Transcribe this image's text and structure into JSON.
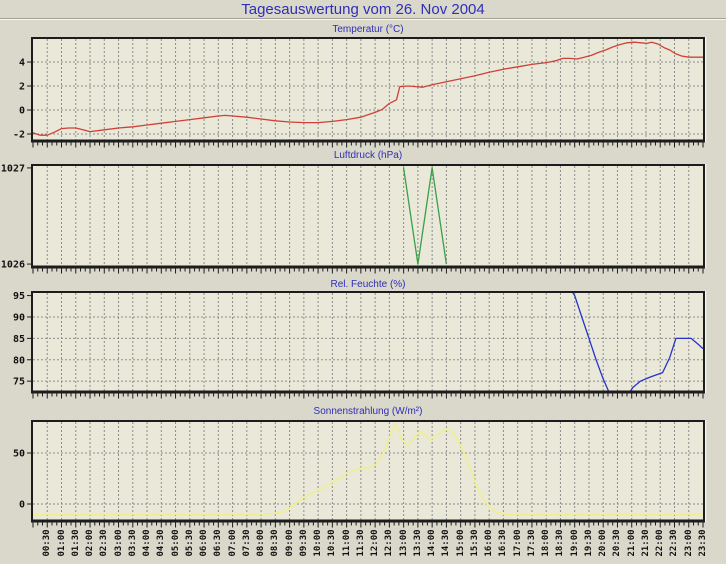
{
  "page": {
    "title": "Tagesauswertung vom 26. Nov 2004"
  },
  "colors": {
    "page_bg": "#d9d8ca",
    "plot_bg": "#e9e8d9",
    "grid": "#8c8c8c",
    "axis": "#1c1c1c",
    "highlight": "#f7f7ee",
    "title_blue": "#2e2eb8",
    "temperature_line": "#d04038",
    "pressure_line": "#3aa048",
    "humidity_line": "#2832c8",
    "solar_line": "#efef92"
  },
  "axis": {
    "x_range": [
      "00:00",
      "23:30"
    ],
    "x_tick_interval_min": 30,
    "x_tick_labels": [
      "00:30",
      "01:00",
      "01:30",
      "02:00",
      "02:30",
      "03:00",
      "03:30",
      "04:00",
      "04:30",
      "05:00",
      "05:30",
      "06:00",
      "06:30",
      "07:00",
      "07:30",
      "08:00",
      "08:30",
      "09:00",
      "09:30",
      "10:00",
      "10:30",
      "11:00",
      "11:30",
      "12:00",
      "12:30",
      "13:00",
      "13:30",
      "14:00",
      "14:30",
      "15:00",
      "15:30",
      "16:00",
      "16:30",
      "17:00",
      "17:30",
      "18:00",
      "18:30",
      "19:00",
      "19:30",
      "20:00",
      "20:30",
      "21:00",
      "21:30",
      "22:00",
      "22:30",
      "23:00",
      "23:30"
    ]
  },
  "chart_data": [
    {
      "type": "line",
      "name": "temperature",
      "title": "Temperatur (°C)",
      "color": "#d04038",
      "stroke_width": 1.3,
      "grid": true,
      "legend": "none",
      "ylim": [
        -2.5,
        5.92
      ],
      "yticks": [
        {
          "value": 4,
          "label": "4"
        },
        {
          "value": 2,
          "label": "2"
        },
        {
          "value": 0,
          "label": "0"
        },
        {
          "value": -2,
          "label": "-2"
        }
      ],
      "x_unit": "minutes_from_midnight",
      "series": [
        [
          0,
          -1.9
        ],
        [
          15,
          -2.1
        ],
        [
          30,
          -2.1
        ],
        [
          45,
          -1.85
        ],
        [
          60,
          -1.55
        ],
        [
          75,
          -1.5
        ],
        [
          90,
          -1.5
        ],
        [
          105,
          -1.65
        ],
        [
          120,
          -1.8
        ],
        [
          150,
          -1.65
        ],
        [
          180,
          -1.5
        ],
        [
          210,
          -1.4
        ],
        [
          240,
          -1.25
        ],
        [
          270,
          -1.1
        ],
        [
          300,
          -0.95
        ],
        [
          330,
          -0.8
        ],
        [
          360,
          -0.65
        ],
        [
          390,
          -0.5
        ],
        [
          405,
          -0.45
        ],
        [
          420,
          -0.5
        ],
        [
          450,
          -0.6
        ],
        [
          480,
          -0.75
        ],
        [
          510,
          -0.9
        ],
        [
          540,
          -1.0
        ],
        [
          570,
          -1.05
        ],
        [
          600,
          -1.05
        ],
        [
          630,
          -0.95
        ],
        [
          660,
          -0.8
        ],
        [
          690,
          -0.6
        ],
        [
          705,
          -0.4
        ],
        [
          720,
          -0.2
        ],
        [
          735,
          0.05
        ],
        [
          750,
          0.55
        ],
        [
          765,
          0.85
        ],
        [
          772,
          1.95
        ],
        [
          790,
          2.0
        ],
        [
          805,
          1.95
        ],
        [
          820,
          1.9
        ],
        [
          840,
          2.1
        ],
        [
          870,
          2.35
        ],
        [
          900,
          2.6
        ],
        [
          930,
          2.85
        ],
        [
          960,
          3.15
        ],
        [
          990,
          3.4
        ],
        [
          1020,
          3.6
        ],
        [
          1050,
          3.8
        ],
        [
          1080,
          3.95
        ],
        [
          1100,
          4.1
        ],
        [
          1115,
          4.3
        ],
        [
          1130,
          4.3
        ],
        [
          1145,
          4.25
        ],
        [
          1160,
          4.4
        ],
        [
          1175,
          4.55
        ],
        [
          1190,
          4.8
        ],
        [
          1205,
          5.0
        ],
        [
          1220,
          5.25
        ],
        [
          1235,
          5.45
        ],
        [
          1250,
          5.6
        ],
        [
          1265,
          5.65
        ],
        [
          1280,
          5.6
        ],
        [
          1292,
          5.55
        ],
        [
          1302,
          5.65
        ],
        [
          1315,
          5.5
        ],
        [
          1328,
          5.2
        ],
        [
          1340,
          5.0
        ],
        [
          1352,
          4.7
        ],
        [
          1365,
          4.5
        ],
        [
          1380,
          4.4
        ],
        [
          1410,
          4.4
        ]
      ]
    },
    {
      "type": "line",
      "name": "pressure",
      "title": "Luftdruck (hPa)",
      "color": "#3aa048",
      "stroke_width": 1.3,
      "grid": true,
      "legend": "none",
      "ylim": [
        1025.98,
        1027.02
      ],
      "yticks": [
        {
          "value": 1027,
          "label": "1027"
        },
        {
          "value": 1026,
          "label": "1026"
        }
      ],
      "x_unit": "minutes_from_midnight",
      "series": [
        [
          780,
          1027
        ],
        [
          810,
          1026
        ],
        [
          840,
          1027
        ],
        [
          870,
          1026
        ]
      ]
    },
    {
      "type": "line",
      "name": "humidity",
      "title": "Rel. Feuchte (%)",
      "color": "#2832c8",
      "stroke_width": 1.3,
      "grid": true,
      "legend": "none",
      "ylim": [
        72.7,
        95.6
      ],
      "yticks": [
        {
          "value": 95,
          "label": "95"
        },
        {
          "value": 90,
          "label": "90"
        },
        {
          "value": 85,
          "label": "85"
        },
        {
          "value": 80,
          "label": "80"
        },
        {
          "value": 75,
          "label": "75"
        }
      ],
      "x_unit": "minutes_from_midnight",
      "series": [
        [
          1128,
          97
        ],
        [
          1140,
          95
        ],
        [
          1155,
          90
        ],
        [
          1170,
          85
        ],
        [
          1185,
          80
        ],
        [
          1200,
          75.5
        ],
        [
          1212,
          72.5
        ],
        [
          1222,
          71.5
        ],
        [
          1240,
          71.2
        ],
        [
          1252,
          71.8
        ],
        [
          1262,
          73.5
        ],
        [
          1278,
          75
        ],
        [
          1300,
          76
        ],
        [
          1325,
          77
        ],
        [
          1340,
          80.5
        ],
        [
          1353,
          85
        ],
        [
          1370,
          85
        ],
        [
          1385,
          85
        ],
        [
          1398,
          83.8
        ],
        [
          1410,
          82.6
        ]
      ]
    },
    {
      "type": "line",
      "name": "solar-radiation",
      "title": "Sonnenstrahlung (W/m²)",
      "color": "#efef92",
      "stroke_width": 1.6,
      "grid": true,
      "legend": "none",
      "ylim": [
        -15.7,
        80.4
      ],
      "yticks": [
        {
          "value": 50,
          "label": "50"
        },
        {
          "value": 0,
          "label": "0"
        }
      ],
      "x_unit": "minutes_from_midnight",
      "series": [
        [
          0,
          -10
        ],
        [
          45,
          -10.4
        ],
        [
          90,
          -10
        ],
        [
          135,
          -10.3
        ],
        [
          180,
          -10
        ],
        [
          240,
          -10.2
        ],
        [
          300,
          -10
        ],
        [
          360,
          -10.2
        ],
        [
          420,
          -10
        ],
        [
          465,
          -10
        ],
        [
          495,
          -9.6
        ],
        [
          510,
          -9
        ],
        [
          525,
          -8
        ],
        [
          540,
          -4
        ],
        [
          550,
          0
        ],
        [
          565,
          5
        ],
        [
          580,
          9
        ],
        [
          600,
          13
        ],
        [
          615,
          17
        ],
        [
          630,
          21
        ],
        [
          645,
          25
        ],
        [
          660,
          30
        ],
        [
          675,
          33
        ],
        [
          690,
          35
        ],
        [
          708,
          36
        ],
        [
          722,
          39
        ],
        [
          733,
          46
        ],
        [
          744,
          58
        ],
        [
          755,
          71
        ],
        [
          760,
          79
        ],
        [
          768,
          74
        ],
        [
          775,
          64
        ],
        [
          788,
          57
        ],
        [
          800,
          63
        ],
        [
          815,
          72
        ],
        [
          825,
          67
        ],
        [
          835,
          63
        ],
        [
          848,
          66
        ],
        [
          862,
          72
        ],
        [
          875,
          73
        ],
        [
          888,
          68
        ],
        [
          900,
          57
        ],
        [
          912,
          45
        ],
        [
          925,
          28
        ],
        [
          938,
          13
        ],
        [
          950,
          3
        ],
        [
          962,
          -4
        ],
        [
          975,
          -8
        ],
        [
          990,
          -10
        ],
        [
          1050,
          -10.3
        ],
        [
          1110,
          -10
        ],
        [
          1170,
          -10.2
        ],
        [
          1230,
          -10
        ],
        [
          1290,
          -10.2
        ],
        [
          1350,
          -10
        ],
        [
          1410,
          -10
        ]
      ]
    }
  ]
}
